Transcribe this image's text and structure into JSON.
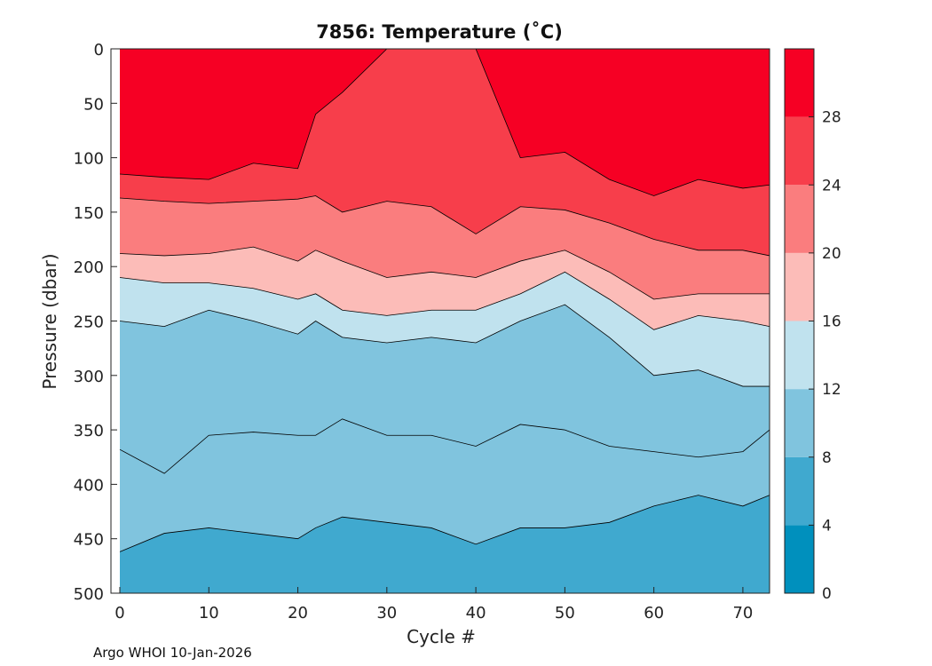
{
  "chart_data": {
    "type": "heatmap",
    "title": "7856:  Temperature (˚C)",
    "xlabel": "Cycle #",
    "ylabel": "Pressure (dbar)",
    "xlim": [
      0,
      73
    ],
    "ylim": [
      0,
      500
    ],
    "x_ticks": [
      "0",
      "10",
      "20",
      "30",
      "40",
      "50",
      "60",
      "70"
    ],
    "y_ticks": [
      "0",
      "50",
      "100",
      "150",
      "200",
      "250",
      "300",
      "350",
      "400",
      "450",
      "500"
    ],
    "colorbar": {
      "range": [
        0,
        32
      ],
      "ticks": [
        "0",
        "4",
        "8",
        "12",
        "16",
        "20",
        "24",
        "28"
      ],
      "levels": [
        {
          "from": 0,
          "to": 4,
          "color": "#0090bd"
        },
        {
          "from": 4,
          "to": 8,
          "color": "#40a9cf"
        },
        {
          "from": 8,
          "to": 12,
          "color": "#80c4de"
        },
        {
          "from": 12,
          "to": 16,
          "color": "#c0e2ee"
        },
        {
          "from": 16,
          "to": 20,
          "color": "#fcbcb8"
        },
        {
          "from": 20,
          "to": 24,
          "color": "#fa7d7e"
        },
        {
          "from": 24,
          "to": 28,
          "color": "#f73e4b"
        },
        {
          "from": 28,
          "to": 32,
          "color": "#f60024"
        }
      ]
    },
    "contour_points": [
      {
        "cycle": 0,
        "p28": 115,
        "p24": 137,
        "p20": 188,
        "p16": 210,
        "p12": 250,
        "p10": 368,
        "p9": 462
      },
      {
        "cycle": 5,
        "p28": 118,
        "p24": 140,
        "p20": 190,
        "p16": 215,
        "p12": 255,
        "p10": 390,
        "p9": 445
      },
      {
        "cycle": 10,
        "p28": 120,
        "p24": 142,
        "p20": 188,
        "p16": 215,
        "p12": 240,
        "p10": 355,
        "p9": 440
      },
      {
        "cycle": 15,
        "p28": 105,
        "p24": 140,
        "p20": 182,
        "p16": 220,
        "p12": 250,
        "p10": 352,
        "p9": 445
      },
      {
        "cycle": 20,
        "p28": 110,
        "p24": 138,
        "p20": 195,
        "p16": 230,
        "p12": 262,
        "p10": 355,
        "p9": 450
      },
      {
        "cycle": 22,
        "p28": 60,
        "p24": 135,
        "p20": 185,
        "p16": 225,
        "p12": 250,
        "p10": 355,
        "p9": 440
      },
      {
        "cycle": 25,
        "p28": 40,
        "p24": 150,
        "p20": 195,
        "p16": 240,
        "p12": 265,
        "p10": 340,
        "p9": 430
      },
      {
        "cycle": 30,
        "p28": 0,
        "p24": 140,
        "p20": 210,
        "p16": 245,
        "p12": 270,
        "p10": 355,
        "p9": 435
      },
      {
        "cycle": 35,
        "p28": 0,
        "p24": 145,
        "p20": 205,
        "p16": 240,
        "p12": 265,
        "p10": 355,
        "p9": 440
      },
      {
        "cycle": 40,
        "p28": 0,
        "p24": 170,
        "p20": 210,
        "p16": 240,
        "p12": 270,
        "p10": 365,
        "p9": 455
      },
      {
        "cycle": 45,
        "p28": 100,
        "p24": 145,
        "p20": 195,
        "p16": 225,
        "p12": 250,
        "p10": 345,
        "p9": 440
      },
      {
        "cycle": 50,
        "p28": 95,
        "p24": 148,
        "p20": 185,
        "p16": 205,
        "p12": 235,
        "p10": 350,
        "p9": 440
      },
      {
        "cycle": 55,
        "p28": 120,
        "p24": 160,
        "p20": 205,
        "p16": 230,
        "p12": 265,
        "p10": 365,
        "p9": 435
      },
      {
        "cycle": 60,
        "p28": 135,
        "p24": 175,
        "p20": 230,
        "p16": 258,
        "p12": 300,
        "p10": 370,
        "p9": 420
      },
      {
        "cycle": 65,
        "p28": 120,
        "p24": 185,
        "p20": 225,
        "p16": 245,
        "p12": 295,
        "p10": 375,
        "p9": 410
      },
      {
        "cycle": 70,
        "p28": 128,
        "p24": 185,
        "p20": 225,
        "p16": 250,
        "p12": 310,
        "p10": 370,
        "p9": 420
      },
      {
        "cycle": 73,
        "p28": 125,
        "p24": 190,
        "p20": 225,
        "p16": 255,
        "p12": 310,
        "p10": 350,
        "p9": 410
      }
    ]
  },
  "footer": "Argo WHOI 10-Jan-2026"
}
